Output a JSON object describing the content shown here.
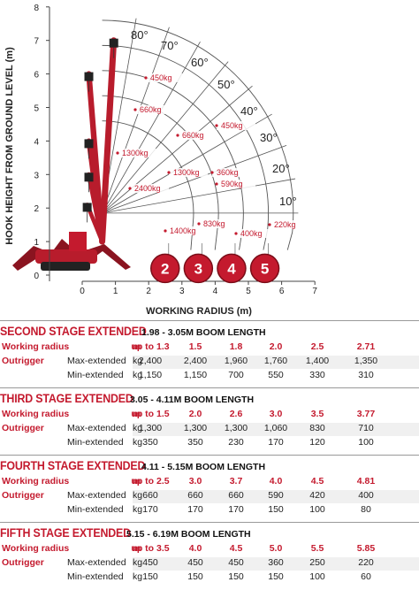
{
  "chart": {
    "y_axis_label": "HOOK HEIGHT FROM GROUND LEVEL (m)",
    "x_axis_label": "WORKING RADIUS (m)",
    "y_ticks": [
      "0",
      "1",
      "2",
      "3",
      "4",
      "5",
      "6",
      "7",
      "8"
    ],
    "x_ticks": [
      "0",
      "1",
      "2",
      "3",
      "4",
      "5",
      "6",
      "7"
    ],
    "angle_labels": [
      "80°",
      "70°",
      "60°",
      "50°",
      "40°",
      "30°",
      "20°",
      "10°"
    ],
    "load_labels": [
      {
        "text": "450kg"
      },
      {
        "text": "660kg"
      },
      {
        "text": "660kg"
      },
      {
        "text": "450kg"
      },
      {
        "text": "1300kg"
      },
      {
        "text": "1300kg"
      },
      {
        "text": "360kg"
      },
      {
        "text": "590kg"
      },
      {
        "text": "2400kg"
      },
      {
        "text": "1400kg"
      },
      {
        "text": "830kg"
      },
      {
        "text": "400kg"
      },
      {
        "text": "220kg"
      }
    ],
    "stage_badges": [
      "2",
      "3",
      "4",
      "5"
    ],
    "accent_color": "#c41a2e"
  },
  "stages": [
    {
      "title": "SECOND STAGE EXTENDED",
      "boom_length": "1.98 - 3.05M BOOM LENGTH",
      "radius_label": "Working radius",
      "radius_unit": "m",
      "radius_values": [
        "up to 1.3",
        "1.5",
        "1.8",
        "2.0",
        "2.5",
        "2.71"
      ],
      "outrigger_label": "Outrigger",
      "max_label": "Max-extended",
      "min_label": "Min-extended",
      "load_unit": "kg",
      "max_values": [
        "2,400",
        "2,400",
        "1,960",
        "1,760",
        "1,400",
        "1,350"
      ],
      "min_values": [
        "1,150",
        "1,150",
        "700",
        "550",
        "330",
        "310"
      ]
    },
    {
      "title": "THIRD STAGE EXTENDED",
      "boom_length": "3.05 - 4.11M BOOM LENGTH",
      "radius_label": "Working radius",
      "radius_unit": "m",
      "radius_values": [
        "up to 1.5",
        "2.0",
        "2.6",
        "3.0",
        "3.5",
        "3.77"
      ],
      "outrigger_label": "Outrigger",
      "max_label": "Max-extended",
      "min_label": "Min-extended",
      "load_unit": "kg",
      "max_values": [
        "1,300",
        "1,300",
        "1,300",
        "1,060",
        "830",
        "710"
      ],
      "min_values": [
        "350",
        "350",
        "230",
        "170",
        "120",
        "100"
      ]
    },
    {
      "title": "FOURTH STAGE EXTENDED",
      "boom_length": "4.11 - 5.15M BOOM LENGTH",
      "radius_label": "Working radius",
      "radius_unit": "m",
      "radius_values": [
        "up to 2.5",
        "3.0",
        "3.7",
        "4.0",
        "4.5",
        "4.81"
      ],
      "outrigger_label": "Outrigger",
      "max_label": "Max-extended",
      "min_label": "Min-extended",
      "load_unit": "kg",
      "max_values": [
        "660",
        "660",
        "660",
        "590",
        "420",
        "400"
      ],
      "min_values": [
        "170",
        "170",
        "170",
        "150",
        "100",
        "80"
      ]
    },
    {
      "title": "FIFTH STAGE EXTENDED",
      "boom_length": "5.15 - 6.19M BOOM LENGTH",
      "radius_label": "Working radius",
      "radius_unit": "m",
      "radius_values": [
        "up to 3.5",
        "4.0",
        "4.5",
        "5.0",
        "5.5",
        "5.85"
      ],
      "outrigger_label": "Outrigger",
      "max_label": "Max-extended",
      "min_label": "Min-extended",
      "load_unit": "kg",
      "max_values": [
        "450",
        "450",
        "450",
        "360",
        "250",
        "220"
      ],
      "min_values": [
        "150",
        "150",
        "150",
        "150",
        "100",
        "60"
      ]
    }
  ]
}
